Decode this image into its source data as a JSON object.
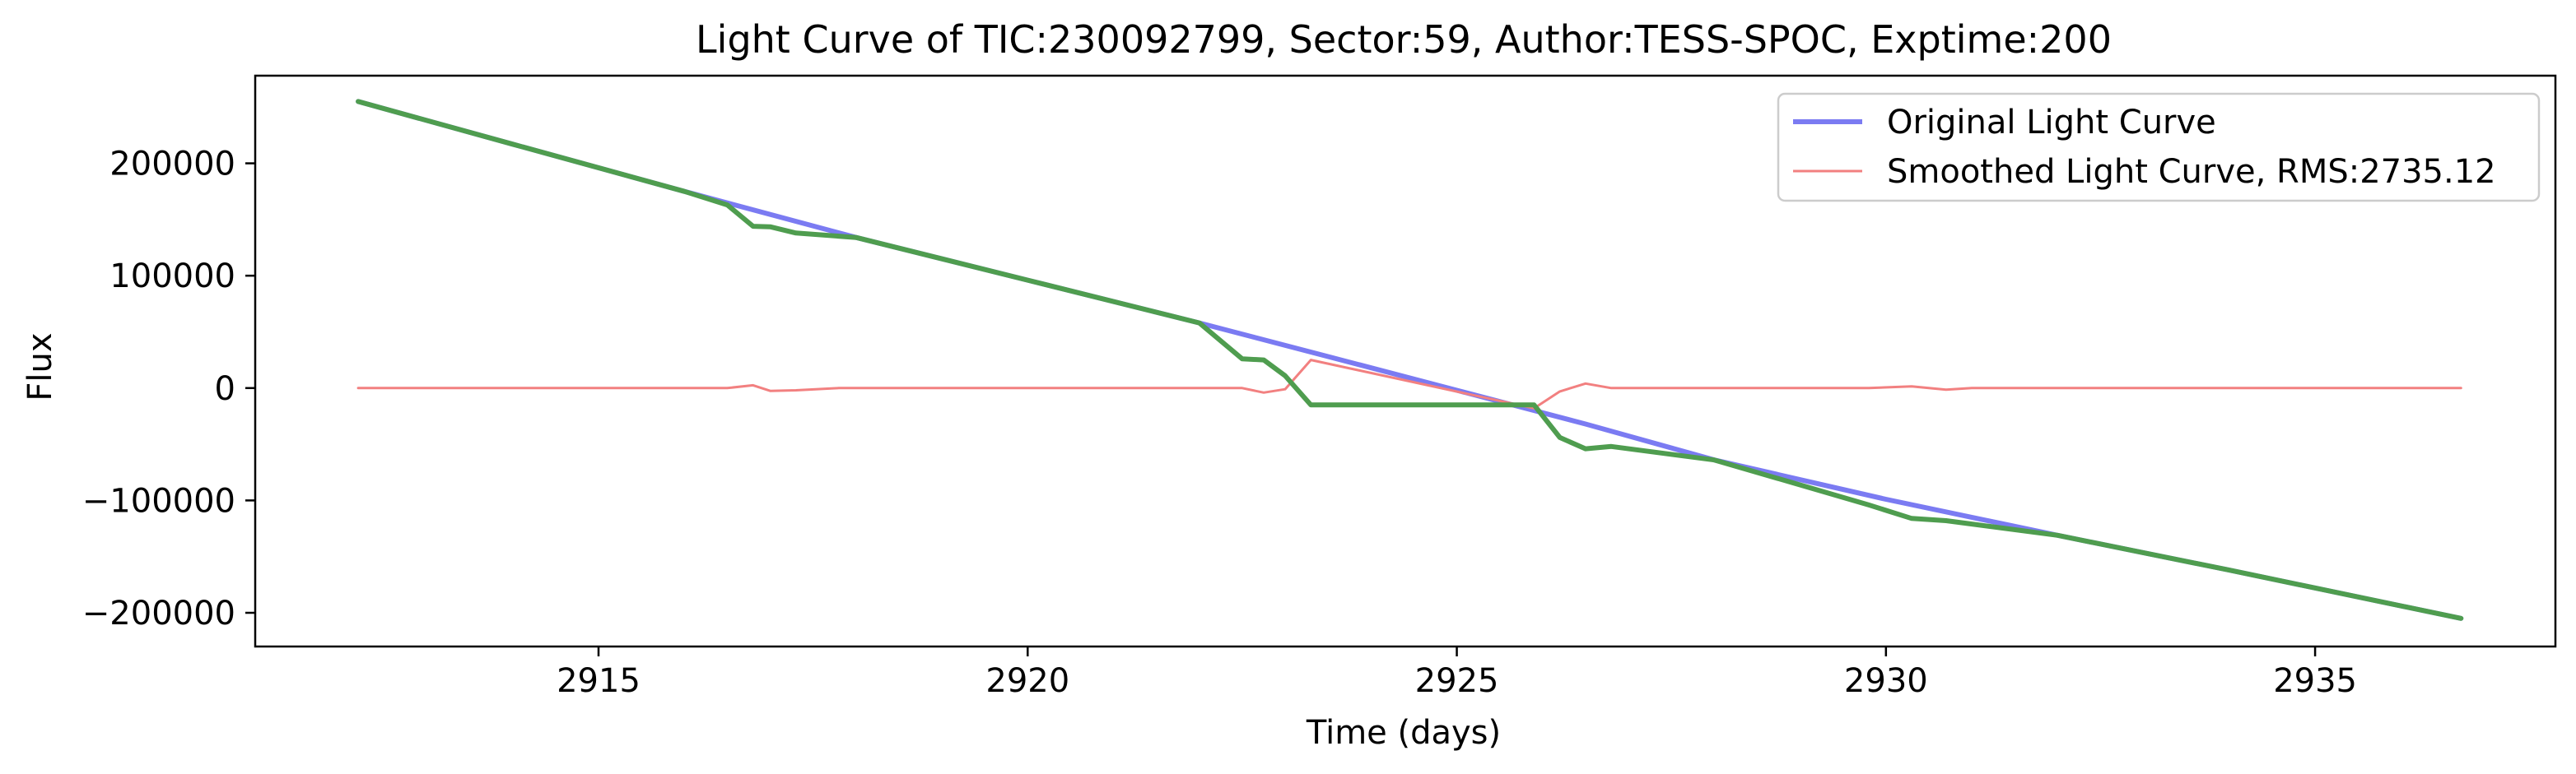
{
  "chart_data": {
    "type": "line",
    "title": "Light Curve of TIC:230092799, Sector:59, Author:TESS-SPOC, Exptime:200",
    "xlabel": "Time (days)",
    "ylabel": "Flux",
    "xlim": [
      2911.0,
      2937.8
    ],
    "ylim": [
      -230000,
      278000
    ],
    "xticks": [
      2915,
      2920,
      2925,
      2930,
      2935
    ],
    "xtick_labels": [
      "2915",
      "2920",
      "2925",
      "2930",
      "2935"
    ],
    "yticks": [
      200000,
      100000,
      0,
      -100000,
      -200000
    ],
    "ytick_labels": [
      "200000",
      "100000",
      "0",
      "−100000",
      "−200000"
    ],
    "grid": false,
    "legend_position": "top-right",
    "series": [
      {
        "name": "Original Light Curve",
        "color": "#7b7bf2",
        "x": [
          2912.2,
          2914.0,
          2916.0,
          2918.0,
          2920.0,
          2922.0,
          2923.5,
          2925.0,
          2926.5,
          2928.0,
          2930.0,
          2932.0,
          2934.0,
          2936.7
        ],
        "y": [
          255000,
          217000,
          175000,
          134000,
          96000,
          58000,
          28000,
          -2000,
          -32000,
          -64000,
          -99000,
          -131000,
          -162000,
          -205000
        ]
      },
      {
        "name": "Smoothed Light Curve, RMS:2735.12",
        "color": "#f28080",
        "x": [
          2912.2,
          2916.5,
          2916.8,
          2917.0,
          2917.3,
          2917.8,
          2922.5,
          2922.75,
          2923.0,
          2923.3,
          2925.9,
          2926.2,
          2926.5,
          2926.8,
          2929.8,
          2930.3,
          2930.7,
          2931.0,
          2936.7
        ],
        "y": [
          0,
          0,
          2500,
          -2500,
          -2000,
          0,
          0,
          -4000,
          -1000,
          25000,
          -18000,
          -3000,
          4000,
          0,
          0,
          1500,
          -1500,
          0,
          0
        ]
      },
      {
        "name": "",
        "color": "#4f9d4f",
        "x": [
          2912.2,
          2914.0,
          2916.0,
          2916.5,
          2916.8,
          2917.0,
          2917.3,
          2918.0,
          2920.0,
          2922.0,
          2922.5,
          2922.75,
          2923.0,
          2923.3,
          2925.9,
          2926.2,
          2926.5,
          2926.8,
          2928.0,
          2929.8,
          2930.3,
          2930.7,
          2932.0,
          2934.0,
          2936.7
        ],
        "y": [
          255000,
          217000,
          175000,
          163000,
          144000,
          143500,
          138000,
          134000,
          96000,
          58000,
          26000,
          25000,
          11000,
          -15000,
          -15000,
          -44000,
          -54000,
          -52000,
          -64000,
          -104000,
          -116000,
          -118000,
          -131000,
          -162000,
          -205000
        ]
      }
    ]
  }
}
